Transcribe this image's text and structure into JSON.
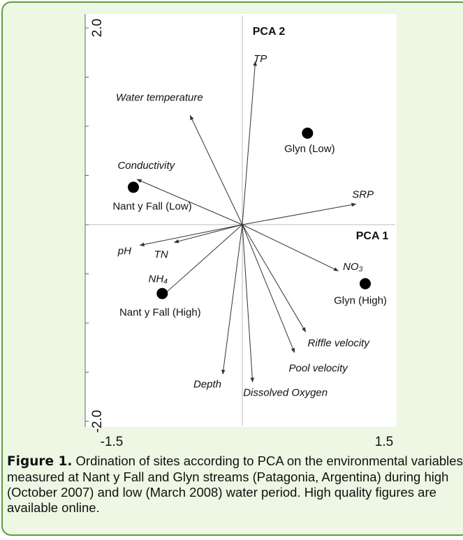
{
  "chart_data": {
    "type": "biplot",
    "xlabel": "PCA 1",
    "ylabel": "PCA 2",
    "xlim": [
      -1.5,
      1.5
    ],
    "ylim": [
      -2,
      2
    ],
    "xticks": [
      -1.5,
      1.5
    ],
    "yticks": [
      {
        "value": -2,
        "label": "-2.0"
      },
      {
        "value": 2,
        "label": "2.0"
      }
    ],
    "yminorticks": [
      -1.5,
      -1,
      -0.5,
      0,
      0.5,
      1,
      1.5
    ],
    "vectors": [
      {
        "name": "TP",
        "x": 0.14,
        "y": 1.66
      },
      {
        "name": "Water temperature",
        "x": -0.56,
        "y": 1.11
      },
      {
        "name": "Conductivity",
        "x": -1.13,
        "y": 0.46
      },
      {
        "name": "SRP",
        "x": 1.22,
        "y": 0.21
      },
      {
        "name": "NO₃",
        "x": 1.03,
        "y": -0.47
      },
      {
        "name": "Riffle velocity",
        "x": 0.68,
        "y": -1.09
      },
      {
        "name": "Pool velocity",
        "x": 0.56,
        "y": -1.3
      },
      {
        "name": "Dissolved Oxygen",
        "x": 0.11,
        "y": -1.6
      },
      {
        "name": "Depth",
        "x": -0.21,
        "y": -1.52
      },
      {
        "name": "pH",
        "x": -1.1,
        "y": -0.21
      },
      {
        "name": "TN",
        "x": -0.73,
        "y": -0.18
      },
      {
        "name": "NH₄",
        "x": -0.89,
        "y": -0.75
      }
    ],
    "points": [
      {
        "name": "Glyn (Low)",
        "x": 0.7,
        "y": 0.93
      },
      {
        "name": "Nant y Fall (Low)",
        "x": -1.17,
        "y": 0.38
      },
      {
        "name": "Nant y Fall (High)",
        "x": -0.86,
        "y": -0.7
      },
      {
        "name": "Glyn (High)",
        "x": 1.32,
        "y": -0.6
      }
    ]
  },
  "caption": {
    "label": "Figure 1.",
    "text": "Ordination of sites according to PCA on the environmental variables measured at Nant y Fall and Glyn streams (Patagonia, Argentina) during high (October 2007) and low (March 2008) water period. High quality figures are available online."
  }
}
